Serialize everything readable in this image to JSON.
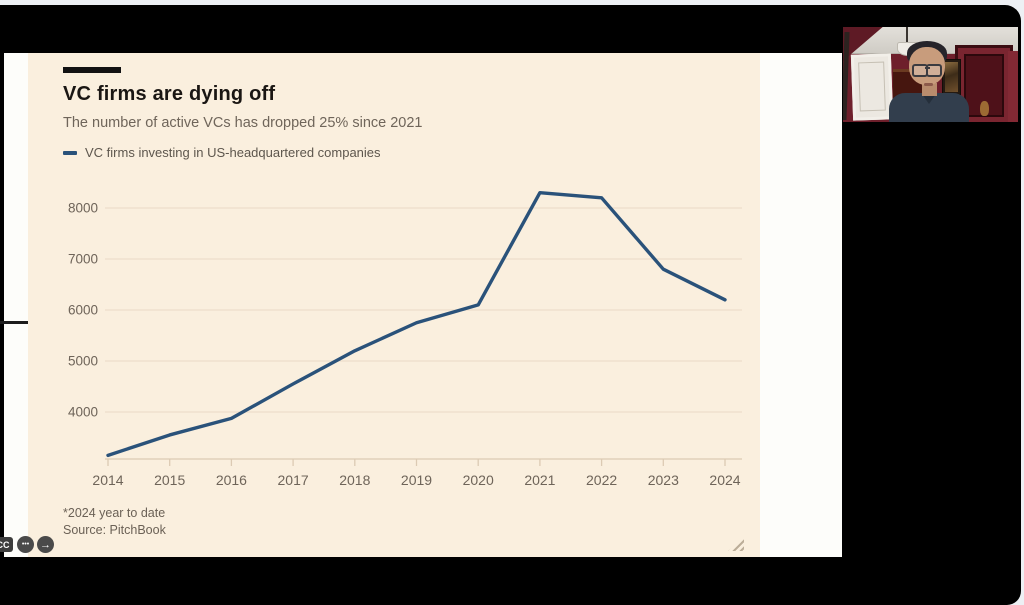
{
  "chart": {
    "colors": {
      "background": "#faefde",
      "line": "#2a527a",
      "grid": "#f0e1cd",
      "axis": "#dccab3",
      "text": "#6e6459",
      "title_text": "#1a1613"
    }
  },
  "chart_data": {
    "type": "line",
    "title": "VC firms are dying off",
    "subtitle": "The number of active VCs has dropped 25% since 2021",
    "x": [
      2014,
      2015,
      2016,
      2017,
      2018,
      2019,
      2020,
      2021,
      2022,
      2023,
      2024
    ],
    "series": [
      {
        "name": "VC firms investing in US-headquartered companies",
        "values": [
          3150,
          3550,
          3875,
          4550,
          5200,
          5750,
          6100,
          8300,
          8200,
          6800,
          6200
        ]
      }
    ],
    "xlabel": "",
    "ylabel": "",
    "yticks": [
      4000,
      5000,
      6000,
      7000,
      8000
    ],
    "ylim": [
      3000,
      8600
    ],
    "grid": true,
    "legend_position": "top-left",
    "footnote": "*2024 year to date",
    "source": "Source: PitchBook"
  },
  "meeting": {
    "captions_badge": "CC",
    "more_glyph": "•••",
    "next_glyph": "→"
  }
}
